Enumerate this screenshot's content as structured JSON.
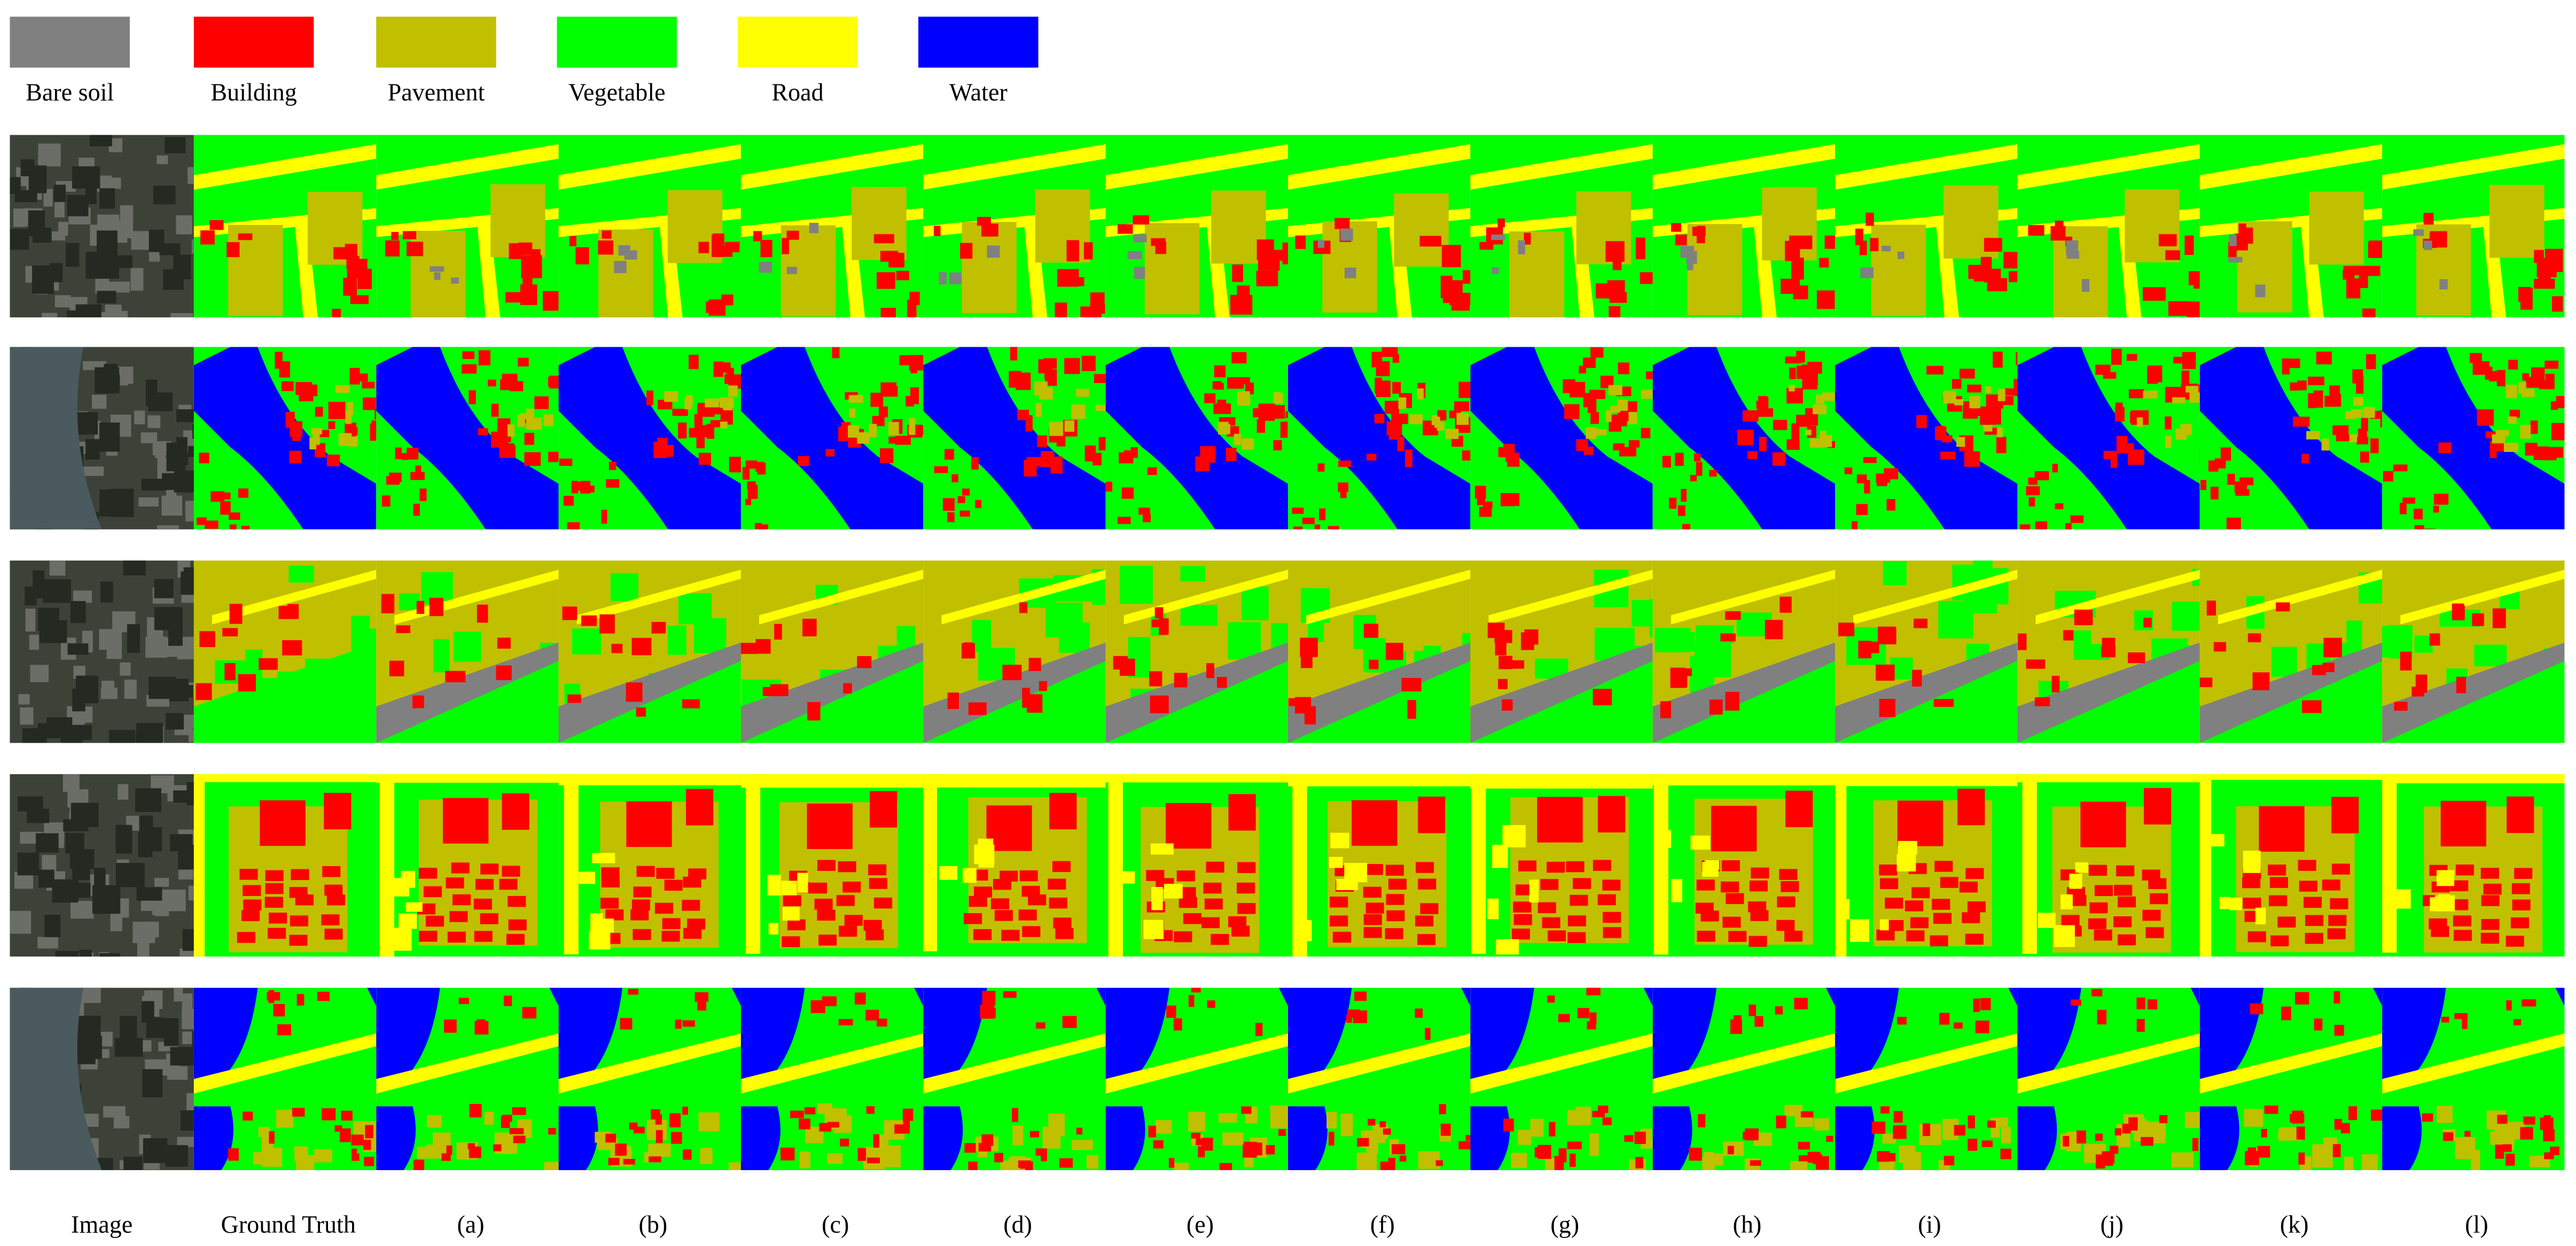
{
  "legend": {
    "items": [
      {
        "label": "Bare soil",
        "color": "#808080"
      },
      {
        "label": "Building",
        "color": "#ff0000"
      },
      {
        "label": "Pavement",
        "color": "#c0c000"
      },
      {
        "label": "Vegetable",
        "color": "#00ff00"
      },
      {
        "label": "Road",
        "color": "#ffff00"
      },
      {
        "label": "Water",
        "color": "#0000ff"
      }
    ]
  },
  "columns": [
    "Image",
    "Ground Truth",
    "(a)",
    "(b)",
    "(c)",
    "(d)",
    "(e)",
    "(f)",
    "(g)",
    "(h)",
    "(i)",
    "(j)",
    "(k)",
    "(l)"
  ]
}
